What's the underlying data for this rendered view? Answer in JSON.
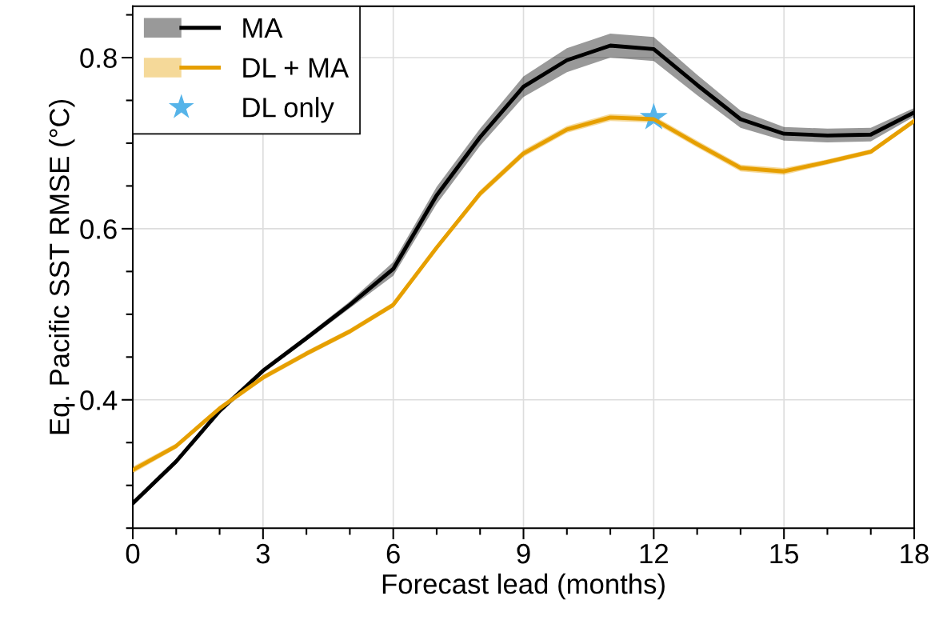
{
  "chart_data": {
    "type": "line",
    "xlabel": "Forecast lead (months)",
    "ylabel": "Eq. Pacific SST RMSE (°C)",
    "x": [
      0,
      1,
      2,
      3,
      4,
      5,
      6,
      7,
      8,
      9,
      10,
      11,
      12,
      13,
      14,
      15,
      16,
      17,
      18
    ],
    "series": [
      {
        "name": "MA",
        "color": "#000000",
        "values": [
          0.279,
          0.328,
          0.387,
          0.434,
          0.472,
          0.511,
          0.553,
          0.639,
          0.707,
          0.766,
          0.797,
          0.814,
          0.81,
          0.768,
          0.728,
          0.711,
          0.709,
          0.71,
          0.736
        ],
        "lower": [
          0.276,
          0.325,
          0.384,
          0.431,
          0.469,
          0.507,
          0.545,
          0.629,
          0.697,
          0.754,
          0.783,
          0.8,
          0.796,
          0.756,
          0.718,
          0.703,
          0.701,
          0.702,
          0.731
        ],
        "upper": [
          0.282,
          0.331,
          0.39,
          0.437,
          0.475,
          0.515,
          0.561,
          0.649,
          0.717,
          0.778,
          0.811,
          0.828,
          0.824,
          0.78,
          0.738,
          0.719,
          0.717,
          0.718,
          0.741
        ]
      },
      {
        "name": "DL + MA",
        "color": "#e69f00",
        "values": [
          0.318,
          0.346,
          0.39,
          0.426,
          0.454,
          0.48,
          0.511,
          0.578,
          0.641,
          0.688,
          0.716,
          0.73,
          0.728,
          0.699,
          0.671,
          0.667,
          0.678,
          0.69,
          0.726
        ],
        "lower": [
          0.314,
          0.343,
          0.387,
          0.423,
          0.451,
          0.477,
          0.508,
          0.575,
          0.637,
          0.684,
          0.712,
          0.726,
          0.724,
          0.695,
          0.667,
          0.663,
          0.675,
          0.687,
          0.723
        ],
        "upper": [
          0.322,
          0.349,
          0.393,
          0.429,
          0.457,
          0.483,
          0.514,
          0.581,
          0.645,
          0.692,
          0.72,
          0.734,
          0.732,
          0.703,
          0.675,
          0.671,
          0.681,
          0.693,
          0.729
        ]
      },
      {
        "name": "DL only",
        "type": "scatter",
        "marker": "star",
        "color": "#56b4e9",
        "x": [
          12
        ],
        "values": [
          0.73
        ]
      }
    ],
    "xlim": [
      0,
      18
    ],
    "xticks": [
      0,
      {
        "value": 1,
        "label": null
      },
      {
        "value": 2,
        "label": null
      },
      3,
      {
        "value": 4,
        "label": null
      },
      {
        "value": 5,
        "label": null
      },
      6,
      {
        "value": 7,
        "label": null
      },
      {
        "value": 8,
        "label": null
      },
      9,
      {
        "value": 10,
        "label": null
      },
      {
        "value": 11,
        "label": null
      },
      12,
      {
        "value": 13,
        "label": null
      },
      {
        "value": 14,
        "label": null
      },
      15,
      {
        "value": 16,
        "label": null
      },
      {
        "value": 17,
        "label": null
      },
      18
    ],
    "ylim": [
      0.25,
      0.86
    ],
    "yticks": [
      {
        "value": 0.25,
        "label": null
      },
      {
        "value": 0.3,
        "label": null
      },
      {
        "value": 0.35,
        "label": null
      },
      0.4,
      {
        "value": 0.45,
        "label": null
      },
      {
        "value": 0.5,
        "label": null
      },
      {
        "value": 0.55,
        "label": null
      },
      0.6,
      {
        "value": 0.65,
        "label": null
      },
      {
        "value": 0.7,
        "label": null
      },
      {
        "value": 0.75,
        "label": null
      },
      0.8,
      {
        "value": 0.85,
        "label": null
      }
    ],
    "grid": true,
    "legend": "top left",
    "marker": "none",
    "line_style": "solid"
  }
}
